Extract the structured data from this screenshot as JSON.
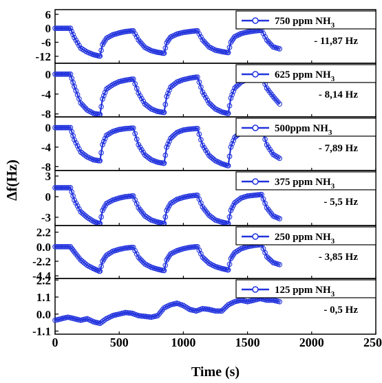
{
  "chart_data": {
    "type": "line",
    "xlabel": "Time (s)",
    "ylabel": "Δf(Hz)",
    "xlim": [
      0,
      2500
    ],
    "x_ticks": [
      "0",
      "500",
      "1000",
      "1500",
      "2000",
      "2500"
    ],
    "series_color": "#2233dd",
    "grid": false,
    "panels": [
      {
        "legend": "750 ppm NH",
        "legend_sub": "3",
        "annotation": "- 11,87 Hz",
        "ylim": [
          -15,
          8
        ],
        "y_ticks": [
          "6",
          "0",
          "-6",
          "-12"
        ],
        "x": [
          0,
          120,
          150,
          200,
          250,
          300,
          345,
          350,
          370,
          400,
          450,
          500,
          550,
          600,
          610,
          650,
          700,
          750,
          800,
          845,
          850,
          870,
          900,
          950,
          1000,
          1050,
          1100,
          1110,
          1150,
          1200,
          1250,
          1300,
          1345,
          1350,
          1370,
          1400,
          1450,
          1500,
          1550,
          1600,
          1610,
          1650,
          1700,
          1750
        ],
        "y": [
          0,
          0,
          -4,
          -8.5,
          -10.2,
          -11.3,
          -11.9,
          -11.9,
          -7,
          -4.3,
          -2.8,
          -2,
          -1.4,
          -1.1,
          -1.1,
          -5,
          -8.2,
          -9.6,
          -10.3,
          -10.7,
          -10.7,
          -6.2,
          -3.8,
          -2.5,
          -1.8,
          -1.4,
          -1.1,
          -1.1,
          -5,
          -8,
          -9.4,
          -10,
          -10.4,
          -10.4,
          -6,
          -3.6,
          -2.3,
          -1.6,
          -1.2,
          -0.9,
          -0.9,
          -5,
          -8,
          -8.8
        ]
      },
      {
        "legend": "625 ppm NH",
        "legend_sub": "3",
        "annotation": "- 8,14 Hz",
        "ylim": [
          -8.6,
          2.2
        ],
        "y_ticks": [
          "0",
          "-4",
          "-8"
        ],
        "x": [
          0,
          120,
          150,
          200,
          250,
          300,
          345,
          350,
          370,
          400,
          450,
          500,
          550,
          600,
          610,
          650,
          700,
          750,
          800,
          845,
          850,
          870,
          900,
          950,
          1000,
          1050,
          1100,
          1110,
          1150,
          1200,
          1250,
          1300,
          1345,
          1350,
          1370,
          1400,
          1450,
          1500,
          1550,
          1600,
          1610,
          1650,
          1700,
          1750
        ],
        "y": [
          0,
          0,
          -2.5,
          -5.8,
          -7.2,
          -7.9,
          -8.1,
          -8.1,
          -5,
          -3,
          -2.1,
          -1.5,
          -1.2,
          -1,
          -1,
          -3.8,
          -6,
          -7,
          -7.5,
          -7.7,
          -7.7,
          -4.5,
          -2.6,
          -1.6,
          -1.1,
          -0.8,
          -0.6,
          -0.6,
          -3.6,
          -5.8,
          -7,
          -7.6,
          -7.9,
          -7.9,
          -4.8,
          -2.8,
          -1.6,
          -1,
          -0.6,
          -0.4,
          -0.4,
          -2.8,
          -4.5,
          -6
        ]
      },
      {
        "legend": "500ppm NH",
        "legend_sub": "3",
        "annotation": "- 7,89 Hz",
        "ylim": [
          -8.8,
          2.2
        ],
        "y_ticks": [
          "0",
          "-4",
          "-8"
        ],
        "x": [
          0,
          120,
          150,
          200,
          250,
          300,
          345,
          350,
          370,
          400,
          450,
          500,
          550,
          600,
          610,
          650,
          700,
          750,
          800,
          845,
          850,
          870,
          900,
          950,
          1000,
          1050,
          1100,
          1110,
          1150,
          1200,
          1250,
          1300,
          1345,
          1350,
          1370,
          1400,
          1450,
          1500,
          1550,
          1600,
          1610,
          1650,
          1700,
          1750
        ],
        "y": [
          0,
          0,
          -2.5,
          -5,
          -6,
          -6.6,
          -6.8,
          -6.8,
          -3.5,
          -1.6,
          -0.8,
          -0.4,
          -0.2,
          -0.1,
          -0.1,
          -3.5,
          -5.6,
          -6.6,
          -7.1,
          -7.3,
          -7.3,
          -4,
          -2.2,
          -1,
          -0.5,
          -0.3,
          -0.2,
          -0.2,
          -3.6,
          -5.7,
          -6.8,
          -7.4,
          -7.8,
          -7.8,
          -4,
          -2,
          -1,
          -0.5,
          -0.3,
          -0.2,
          -0.2,
          -3.5,
          -5.5,
          -6.3
        ]
      },
      {
        "legend": "375 ppm NH",
        "legend_sub": "3",
        "annotation": "- 5,5 Hz",
        "ylim": [
          -4.2,
          3.8
        ],
        "y_ticks": [
          "3",
          "0",
          "-3"
        ],
        "x": [
          0,
          120,
          150,
          200,
          250,
          300,
          345,
          350,
          370,
          400,
          450,
          500,
          550,
          600,
          610,
          650,
          700,
          750,
          800,
          845,
          850,
          870,
          900,
          950,
          1000,
          1050,
          1100,
          1110,
          1150,
          1200,
          1250,
          1300,
          1345,
          1350,
          1370,
          1400,
          1450,
          1500,
          1550,
          1600,
          1610,
          1650,
          1700,
          1750
        ],
        "y": [
          1.3,
          1.3,
          -0.5,
          -2.2,
          -3,
          -3.6,
          -3.9,
          -3.9,
          -2,
          -1,
          -0.5,
          -0.2,
          0,
          0.1,
          0.1,
          -1.6,
          -2.8,
          -3.4,
          -3.7,
          -3.9,
          -3.9,
          -2,
          -1,
          -0.4,
          -0.1,
          0.1,
          0.2,
          0.2,
          -1.5,
          -2.7,
          -3.4,
          -3.7,
          -3.9,
          -3.9,
          -2,
          -0.9,
          -0.2,
          0.1,
          0.2,
          0.3,
          0.3,
          -1.6,
          -2.8,
          -3.2
        ]
      },
      {
        "legend": "250  ppm NH",
        "legend_sub": "3",
        "annotation": "- 3,85 Hz",
        "ylim": [
          -4.8,
          3.2
        ],
        "y_ticks": [
          "2.2",
          "0.0",
          "-2.2",
          "-4.4"
        ],
        "x": [
          0,
          120,
          150,
          200,
          250,
          300,
          345,
          350,
          370,
          400,
          450,
          500,
          550,
          600,
          610,
          650,
          700,
          750,
          800,
          845,
          850,
          870,
          900,
          950,
          1000,
          1050,
          1100,
          1110,
          1150,
          1200,
          1250,
          1300,
          1345,
          1350,
          1370,
          1400,
          1450,
          1500,
          1550,
          1600,
          1610,
          1650,
          1700,
          1750
        ],
        "y": [
          0,
          0,
          -0.8,
          -2,
          -2.8,
          -3.3,
          -3.7,
          -3.7,
          -2.2,
          -1.3,
          -0.7,
          -0.4,
          -0.2,
          -0.1,
          -0.1,
          -1.6,
          -2.6,
          -3.1,
          -3.4,
          -3.6,
          -3.6,
          -2,
          -1.1,
          -0.6,
          -0.3,
          -0.1,
          0,
          0,
          -1.6,
          -2.5,
          -3,
          -3.3,
          -3.5,
          -3.5,
          -1.8,
          -0.9,
          -0.3,
          0,
          0.2,
          0.3,
          0.3,
          -1.5,
          -2.4,
          -2.7
        ]
      },
      {
        "legend": "125 ppm NH",
        "legend_sub": "3",
        "annotation": "- 0,5 Hz",
        "ylim": [
          -1.3,
          2.3
        ],
        "y_ticks": [
          "2.2",
          "1.1",
          "0.0",
          "-1.1"
        ],
        "x": [
          0,
          50,
          100,
          150,
          200,
          250,
          300,
          350,
          400,
          450,
          500,
          550,
          600,
          650,
          700,
          750,
          800,
          850,
          900,
          950,
          1000,
          1050,
          1100,
          1150,
          1200,
          1250,
          1300,
          1350,
          1400,
          1450,
          1500,
          1550,
          1600,
          1650,
          1700,
          1750
        ],
        "y": [
          -0.4,
          -0.3,
          -0.2,
          -0.3,
          -0.4,
          -0.3,
          -0.5,
          -0.6,
          -0.3,
          -0.1,
          0,
          0.1,
          0.05,
          -0.1,
          -0.15,
          -0.2,
          -0.1,
          0.4,
          0.6,
          0.7,
          0.55,
          0.3,
          0.2,
          0.35,
          0.3,
          0.2,
          0.2,
          0.6,
          0.8,
          0.9,
          0.8,
          0.9,
          1,
          0.9,
          0.9,
          0.8
        ]
      }
    ]
  }
}
